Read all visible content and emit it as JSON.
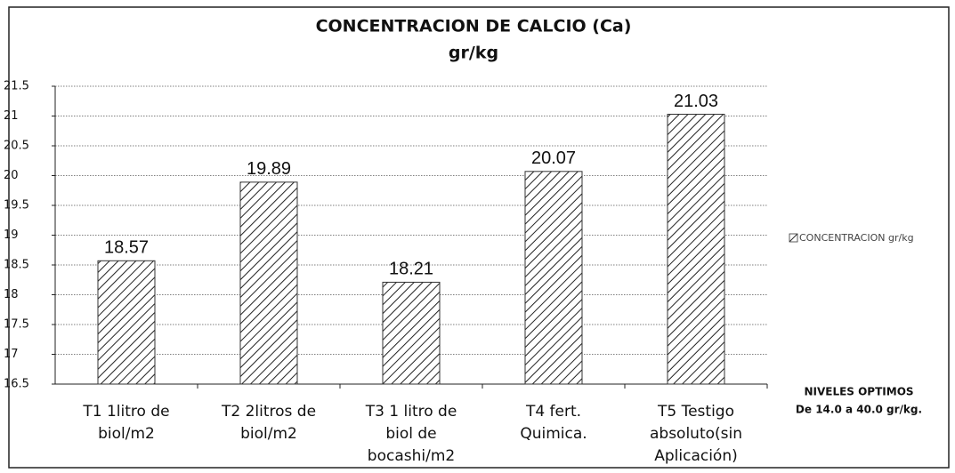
{
  "chart_data": {
    "type": "bar",
    "title": "CONCENTRACION  DE CALCIO (Ca)",
    "subtitle": "gr/kg",
    "categories": [
      [
        "T1 1litro de",
        "biol/m2"
      ],
      [
        "T2 2litros de",
        "biol/m2"
      ],
      [
        "T3 1 litro de",
        "biol de",
        "bocashi/m2"
      ],
      [
        "T4 fert.",
        "Quimica."
      ],
      [
        "T5 Testigo",
        "absoluto(sin",
        "Aplicación)"
      ]
    ],
    "series": [
      {
        "name": "CONCENTRACION gr/kg",
        "color": "#333333",
        "values": [
          18.57,
          19.89,
          18.21,
          20.07,
          21.03
        ]
      }
    ],
    "ylim": [
      16.5,
      21.5
    ],
    "yticks": [
      16.5,
      17,
      17.5,
      18,
      18.5,
      19,
      19.5,
      20,
      20.5,
      21,
      21.5
    ],
    "grid": true,
    "legend": "right",
    "annotations": [
      "NIVELES OPTIMOS",
      "De 14.0 a 40.0 gr/kg."
    ]
  }
}
